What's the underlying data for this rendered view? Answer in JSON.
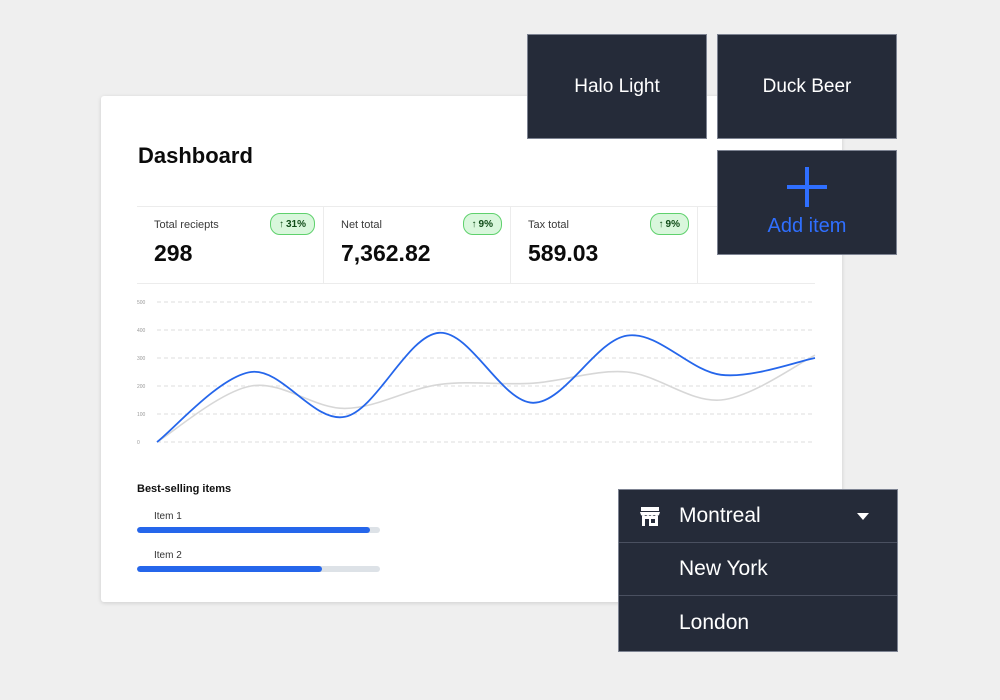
{
  "dashboard": {
    "title": "Dashboard",
    "stats": [
      {
        "label": "Total reciepts",
        "value": "298",
        "change": "31%"
      },
      {
        "label": "Net total",
        "value": "7,362.82",
        "change": "9%"
      },
      {
        "label": "Tax total",
        "value": "589.03",
        "change": "9%"
      }
    ],
    "best_selling": {
      "title": "Best-selling items",
      "items": [
        {
          "label": "Item 1",
          "fill": 0.96
        },
        {
          "label": "Item 2",
          "fill": 0.76
        }
      ]
    }
  },
  "tiles": [
    {
      "label": "Halo Light"
    },
    {
      "label": "Duck Beer"
    },
    {
      "label": "Add item"
    }
  ],
  "store_dropdown": {
    "selected": "Montreal",
    "options": [
      "New York",
      "London"
    ]
  },
  "chart_data": {
    "type": "line",
    "y_ticks": [
      "0",
      "100",
      "200",
      "300",
      "400",
      "500"
    ],
    "ylim": [
      0,
      500
    ],
    "grid": true,
    "series": [
      {
        "color": "#2566eb",
        "values": [
          0,
          250,
          90,
          390,
          140,
          380,
          240,
          300
        ]
      },
      {
        "color": "#d7d7d7",
        "values": [
          0,
          200,
          120,
          205,
          210,
          250,
          150,
          310
        ]
      }
    ]
  },
  "colors": {
    "accent": "#2566eb",
    "positive": "#5fd16d",
    "tile_bg": "#252b39"
  }
}
